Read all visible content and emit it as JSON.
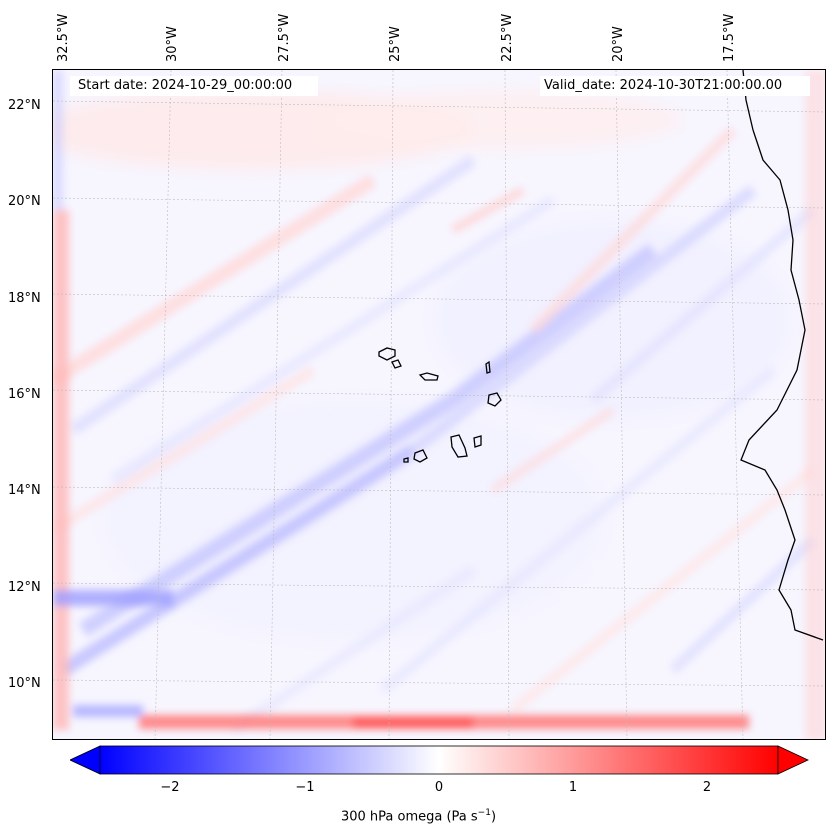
{
  "map": {
    "start_date": "Start date: 2024-10-29_00:00:00",
    "valid_date": "Valid_date: 2024-10-30T21:00:00.00",
    "lon_labels": [
      "32.5°W",
      "30°W",
      "27.5°W",
      "25°W",
      "22.5°W",
      "20°W",
      "17.5°W"
    ],
    "lat_labels": [
      "22°N",
      "20°N",
      "18°N",
      "16°N",
      "14°N",
      "12°N",
      "10°N"
    ],
    "field_colors": {
      "negative": "#0000ff",
      "zero": "#ffffff",
      "positive": "#ff0000"
    },
    "coastline_color": "#000000"
  },
  "colorbar": {
    "ticks": [
      "−2",
      "−1",
      "0",
      "1",
      "2"
    ],
    "label": "300 hPa omega (Pa s",
    "label_sup": "−1",
    "label_end": ")",
    "range": [
      -2.5,
      2.5
    ]
  }
}
